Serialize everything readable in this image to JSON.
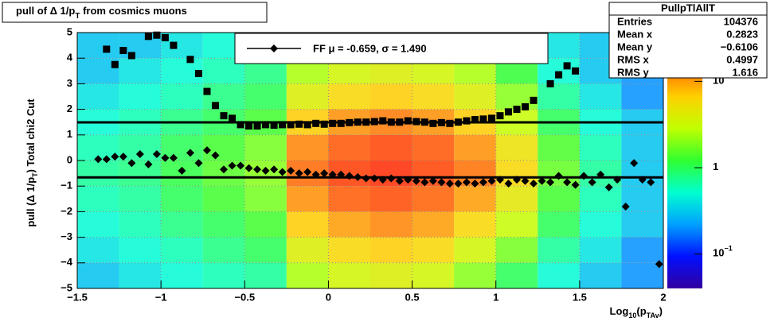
{
  "chart_data": {
    "type": "heatmap-profile",
    "title": [
      "pull of Δ 1/p",
      "T",
      " from cosmics muons"
    ],
    "ylabel": [
      "pull (Δ 1/p",
      "T",
      ")  Total chi2 Cut"
    ],
    "xlabel": [
      "Log",
      "10",
      "(p",
      "TAv",
      ")"
    ],
    "xlim": [
      -1.5,
      2
    ],
    "ylim": [
      -5,
      5
    ],
    "xticks": [
      {
        "value": -1.5,
        "label": "−1.5"
      },
      {
        "value": -1,
        "label": "−1"
      },
      {
        "value": -0.5,
        "label": "−0.5"
      },
      0,
      0.5,
      1,
      1.5,
      2
    ],
    "yticks": [
      {
        "value": -5,
        "label": "−5"
      },
      {
        "value": -4,
        "label": "−4"
      },
      {
        "value": -3,
        "label": "−3"
      },
      {
        "value": -2,
        "label": "−2"
      },
      {
        "value": -1,
        "label": "−1"
      },
      0,
      1,
      2,
      3,
      4,
      5
    ],
    "grid": true,
    "zlim": [
      0.04,
      36.7
    ],
    "zlog": true,
    "zticks": [
      {
        "value": 0.1,
        "label": "10",
        "sup": "−1"
      },
      1,
      10
    ],
    "palette": [
      "#3300a0",
      "#0010ff",
      "#00a0ff",
      "#00ffd0",
      "#30ff30",
      "#c0ff00",
      "#ffd000",
      "#ff6000",
      "#ff1000"
    ],
    "heatmap": {
      "xbins": [
        -1.5,
        -1.25,
        -1,
        -0.75,
        -0.5,
        -0.25,
        0,
        0.25,
        0.5,
        0.75,
        1,
        1.25,
        1.5,
        1.75,
        2
      ],
      "ybins": [
        5,
        4,
        3,
        2,
        1,
        0,
        -1,
        -2,
        -3,
        -4,
        -5
      ],
      "z": [
        [
          0.3,
          0.3,
          0.4,
          0.5,
          0.6,
          1.5,
          2,
          2.2,
          2,
          1.5,
          0.8,
          0.4,
          0.3,
          0.2
        ],
        [
          0.3,
          0.4,
          0.5,
          0.6,
          0.8,
          2.5,
          3.5,
          4,
          3.5,
          2.5,
          1.2,
          0.5,
          0.3,
          0.2
        ],
        [
          0.4,
          0.5,
          0.6,
          0.8,
          1,
          4,
          6,
          7,
          6,
          4,
          2,
          0.7,
          0.4,
          0.2
        ],
        [
          0.5,
          0.6,
          0.8,
          1,
          1.3,
          7,
          11,
          13,
          11,
          7,
          3,
          1,
          0.5,
          0.3
        ],
        [
          0.6,
          0.7,
          1,
          1.3,
          1.8,
          12,
          18,
          22,
          18,
          11,
          5,
          1.4,
          0.6,
          0.3
        ],
        [
          0.7,
          0.8,
          1.1,
          1.5,
          2,
          15,
          24,
          28,
          22,
          14,
          6,
          1.6,
          0.7,
          0.3
        ],
        [
          0.6,
          0.7,
          1,
          1.3,
          1.8,
          11,
          17,
          20,
          16,
          10,
          4.5,
          1.3,
          0.6,
          0.3
        ],
        [
          0.5,
          0.6,
          0.8,
          1,
          1.3,
          7,
          10,
          12,
          10,
          6,
          3,
          1,
          0.5,
          0.3
        ],
        [
          0.4,
          0.5,
          0.6,
          0.8,
          1,
          4,
          6,
          7,
          6,
          3.5,
          1.8,
          0.7,
          0.4,
          0.2
        ],
        [
          0.3,
          0.4,
          0.5,
          0.6,
          0.7,
          2.5,
          3.5,
          4,
          3.5,
          2,
          1,
          0.5,
          0.3,
          0.2
        ]
      ]
    },
    "x": [
      -1.375,
      -1.325,
      -1.275,
      -1.225,
      -1.175,
      -1.125,
      -1.075,
      -1.025,
      -0.975,
      -0.925,
      -0.875,
      -0.825,
      -0.775,
      -0.725,
      -0.675,
      -0.625,
      -0.575,
      -0.525,
      -0.475,
      -0.425,
      -0.375,
      -0.325,
      -0.275,
      -0.225,
      -0.175,
      -0.125,
      -0.075,
      -0.025,
      0.025,
      0.075,
      0.125,
      0.175,
      0.225,
      0.275,
      0.325,
      0.375,
      0.425,
      0.475,
      0.525,
      0.575,
      0.625,
      0.675,
      0.725,
      0.775,
      0.825,
      0.875,
      0.925,
      0.975,
      1.025,
      1.075,
      1.125,
      1.175,
      1.225,
      1.275,
      1.325,
      1.375,
      1.425,
      1.475,
      1.525,
      1.575,
      1.625,
      1.675,
      1.725,
      1.775,
      1.825,
      1.875,
      1.925,
      1.975
    ],
    "series": [
      {
        "marker": "square",
        "color": "#000000",
        "values": [
          null,
          4.35,
          3.75,
          4.3,
          4.1,
          null,
          4.85,
          4.9,
          4.8,
          4.5,
          null,
          3.95,
          3.4,
          2.7,
          2.15,
          1.75,
          1.65,
          1.4,
          1.35,
          1.35,
          1.4,
          1.38,
          1.4,
          1.4,
          1.42,
          1.4,
          1.45,
          1.42,
          1.45,
          1.45,
          1.48,
          1.5,
          1.5,
          1.52,
          1.55,
          1.5,
          1.5,
          1.55,
          1.52,
          1.5,
          1.45,
          1.48,
          1.45,
          1.5,
          1.55,
          1.6,
          1.62,
          1.65,
          1.75,
          1.9,
          2.0,
          2.1,
          2.35,
          null,
          3.0,
          3.35,
          3.7,
          3.5,
          null,
          null,
          null,
          null,
          null,
          null,
          null,
          null,
          null,
          null
        ]
      },
      {
        "marker": "diamond",
        "color": "#000000",
        "values": [
          0.05,
          0.05,
          0.15,
          0.15,
          -0.1,
          0.25,
          -0.15,
          0.25,
          0.1,
          0.1,
          -0.4,
          0.3,
          -0.1,
          0.4,
          0.2,
          -0.35,
          -0.2,
          -0.2,
          -0.3,
          -0.35,
          -0.4,
          -0.35,
          -0.45,
          -0.4,
          -0.5,
          -0.45,
          -0.55,
          -0.5,
          -0.55,
          -0.55,
          -0.6,
          -0.65,
          -0.7,
          -0.7,
          -0.75,
          -0.7,
          -0.8,
          -0.75,
          -0.8,
          -0.85,
          -0.8,
          -0.85,
          -0.9,
          -0.9,
          -0.85,
          -0.9,
          -0.85,
          -0.8,
          -0.75,
          -0.9,
          -0.75,
          -0.8,
          -0.9,
          -0.8,
          -0.85,
          -0.6,
          -0.85,
          -0.95,
          -0.6,
          -0.85,
          -0.55,
          -1.05,
          -0.75,
          -1.8,
          -0.1,
          -0.75,
          -0.85,
          -4.05
        ]
      }
    ],
    "fit": {
      "mean": -0.659,
      "sigma": 1.49
    },
    "legend": "FF μ = -0.659, σ =   1.490",
    "stats": {
      "title": "PullpTlAllT",
      "rows": [
        [
          "Entries",
          "104376"
        ],
        [
          "Mean x",
          "0.2823"
        ],
        [
          "Mean y",
          "−0.6106"
        ],
        [
          "RMS x",
          "0.4997"
        ],
        [
          "RMS y",
          "1.616"
        ]
      ]
    }
  }
}
